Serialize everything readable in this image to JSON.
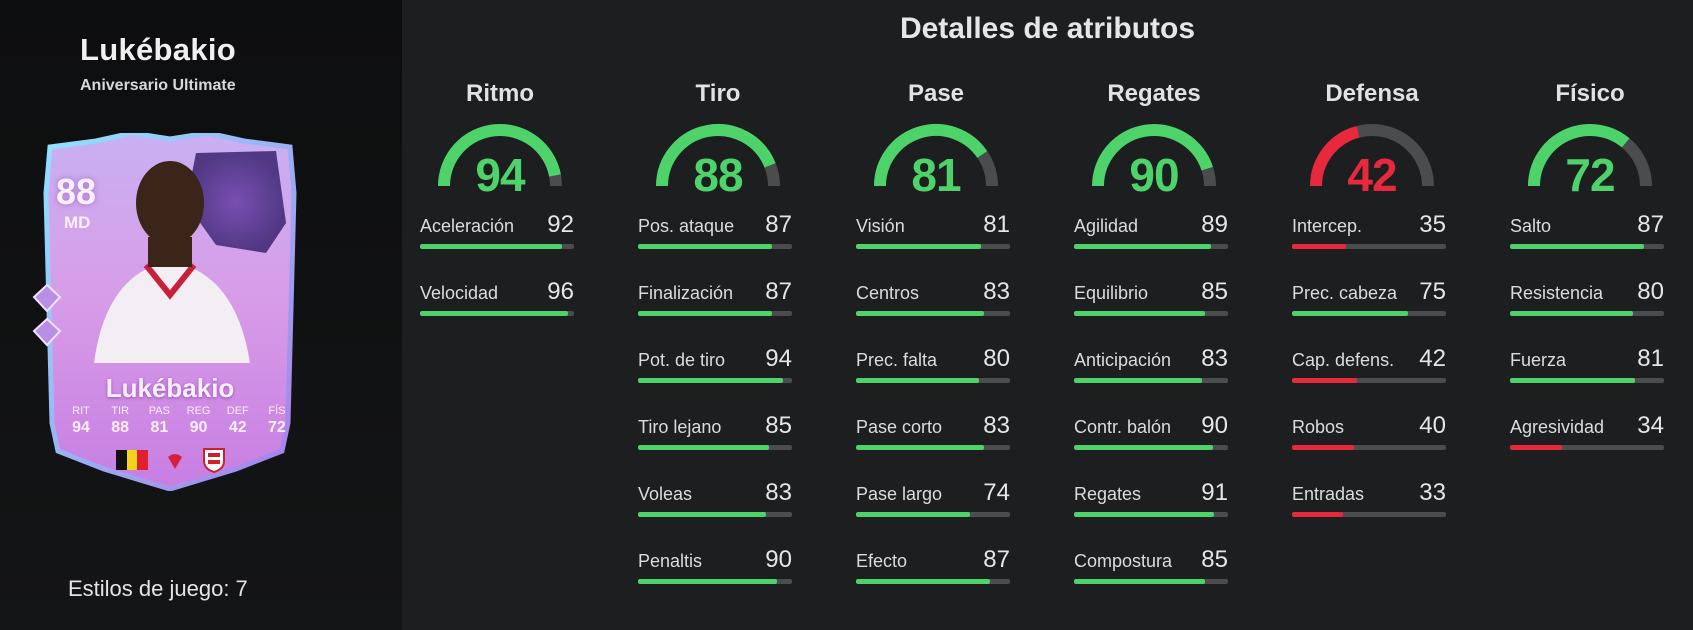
{
  "header": {
    "title": "Detalles de atributos"
  },
  "player": {
    "name": "Lukébakio",
    "card_type": "Aniversario Ultimate",
    "rating": "88",
    "position": "MD",
    "playstyles_label": "Estilos de juego: 7",
    "card_stats": [
      {
        "label": "RIT",
        "value": "94"
      },
      {
        "label": "TIR",
        "value": "88"
      },
      {
        "label": "PAS",
        "value": "81"
      },
      {
        "label": "REG",
        "value": "90"
      },
      {
        "label": "DEF",
        "value": "42"
      },
      {
        "label": "FÍS",
        "value": "72"
      }
    ]
  },
  "colors": {
    "green": "#4ed36a",
    "red": "#e8283c",
    "track": "#4a4c4e"
  },
  "categories": [
    {
      "name": "Ritmo",
      "value": 94,
      "color": "green",
      "attributes": [
        {
          "name": "Aceleración",
          "value": 92
        },
        {
          "name": "Velocidad",
          "value": 96
        }
      ]
    },
    {
      "name": "Tiro",
      "value": 88,
      "color": "green",
      "attributes": [
        {
          "name": "Pos. ataque",
          "value": 87
        },
        {
          "name": "Finalización",
          "value": 87
        },
        {
          "name": "Pot. de tiro",
          "value": 94
        },
        {
          "name": "Tiro lejano",
          "value": 85
        },
        {
          "name": "Voleas",
          "value": 83
        },
        {
          "name": "Penaltis",
          "value": 90
        }
      ]
    },
    {
      "name": "Pase",
      "value": 81,
      "color": "green",
      "attributes": [
        {
          "name": "Visión",
          "value": 81
        },
        {
          "name": "Centros",
          "value": 83
        },
        {
          "name": "Prec. falta",
          "value": 80
        },
        {
          "name": "Pase corto",
          "value": 83
        },
        {
          "name": "Pase largo",
          "value": 74
        },
        {
          "name": "Efecto",
          "value": 87
        }
      ]
    },
    {
      "name": "Regates",
      "value": 90,
      "color": "green",
      "attributes": [
        {
          "name": "Agilidad",
          "value": 89
        },
        {
          "name": "Equilibrio",
          "value": 85
        },
        {
          "name": "Anticipación",
          "value": 83
        },
        {
          "name": "Contr. balón",
          "value": 90
        },
        {
          "name": "Regates",
          "value": 91
        },
        {
          "name": "Compostura",
          "value": 85
        }
      ]
    },
    {
      "name": "Defensa",
      "value": 42,
      "color": "red",
      "attributes": [
        {
          "name": "Intercep.",
          "value": 35
        },
        {
          "name": "Prec. cabeza",
          "value": 75
        },
        {
          "name": "Cap. defens.",
          "value": 42
        },
        {
          "name": "Robos",
          "value": 40
        },
        {
          "name": "Entradas",
          "value": 33
        }
      ]
    },
    {
      "name": "Físico",
      "value": 72,
      "color": "green",
      "attributes": [
        {
          "name": "Salto",
          "value": 87
        },
        {
          "name": "Resistencia",
          "value": 80
        },
        {
          "name": "Fuerza",
          "value": 81
        },
        {
          "name": "Agresividad",
          "value": 34
        }
      ]
    }
  ]
}
